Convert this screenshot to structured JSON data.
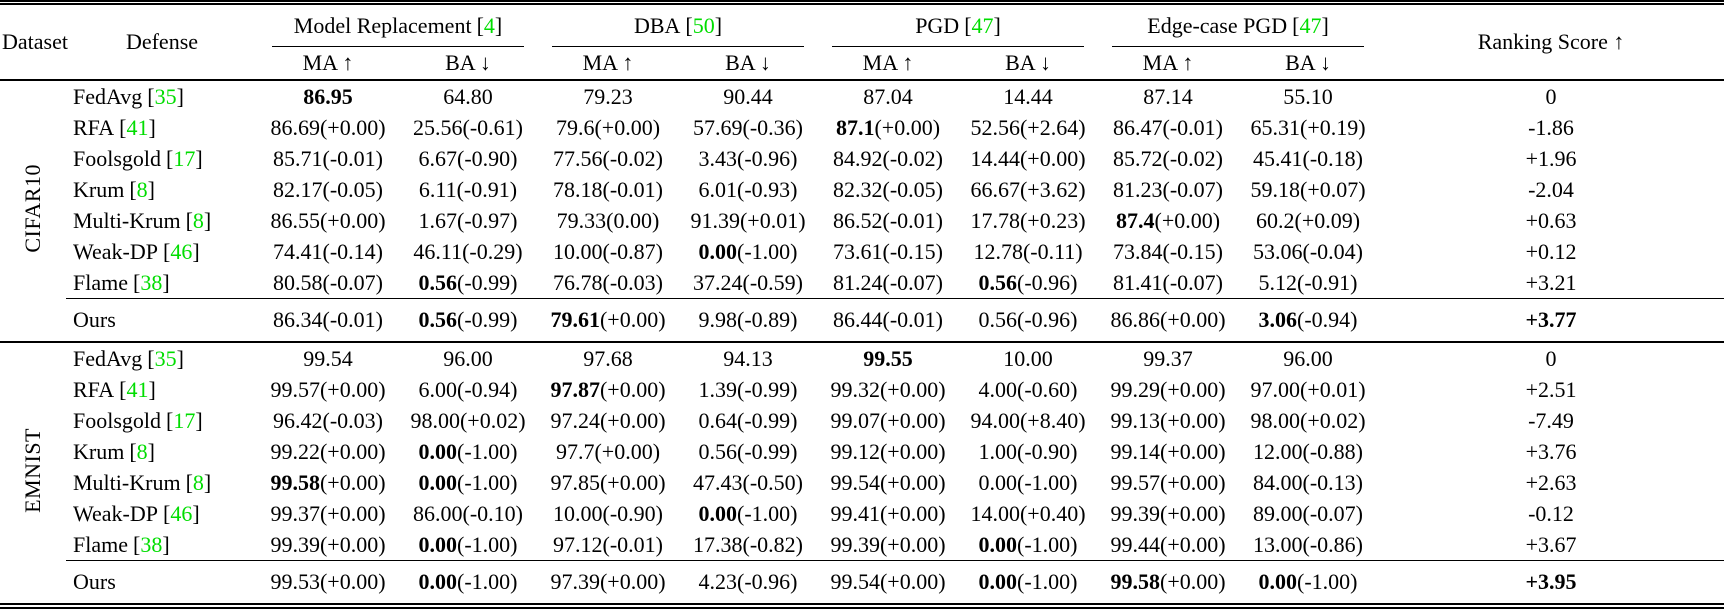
{
  "colors": {
    "citation": "#00dd00",
    "text": "#000000",
    "background": "#ffffff"
  },
  "punct": {
    "open_bracket": "[",
    "close_bracket": "]"
  },
  "header": {
    "dataset": "Dataset",
    "defense": "Defense",
    "groups": [
      {
        "label": "Model Replacement",
        "cite": "4"
      },
      {
        "label": "DBA",
        "cite": "50"
      },
      {
        "label": "PGD",
        "cite": "47"
      },
      {
        "label": "Edge-case PGD",
        "cite": "47"
      }
    ],
    "ma": "MA ↑",
    "ba": "BA ↓",
    "ranking": "Ranking Score ↑"
  },
  "sections": [
    {
      "dataset": "CIFAR10",
      "rows": [
        {
          "defense": "FedAvg",
          "cite": "35",
          "cells": [
            {
              "v": "86.95",
              "b": true
            },
            {
              "v": "64.80"
            },
            {
              "v": "79.23"
            },
            {
              "v": "90.44"
            },
            {
              "v": "87.04"
            },
            {
              "v": "14.44"
            },
            {
              "v": "87.14"
            },
            {
              "v": "55.10"
            }
          ],
          "score": "0",
          "score_bold": false
        },
        {
          "defense": "RFA",
          "cite": "41",
          "cells": [
            {
              "v": "86.69",
              "d": "(+0.00)"
            },
            {
              "v": "25.56",
              "d": "(-0.61)"
            },
            {
              "v": "79.6",
              "d": "(+0.00)"
            },
            {
              "v": "57.69",
              "d": "(-0.36)"
            },
            {
              "v": "87.1",
              "d": "(+0.00)",
              "b": true
            },
            {
              "v": "52.56",
              "d": "(+2.64)"
            },
            {
              "v": "86.47",
              "d": "(-0.01)"
            },
            {
              "v": "65.31",
              "d": "(+0.19)"
            }
          ],
          "score": "-1.86",
          "score_bold": false
        },
        {
          "defense": "Foolsgold",
          "cite": "17",
          "cells": [
            {
              "v": "85.71",
              "d": "(-0.01)"
            },
            {
              "v": "6.67",
              "d": "(-0.90)"
            },
            {
              "v": "77.56",
              "d": "(-0.02)"
            },
            {
              "v": "3.43",
              "d": "(-0.96)"
            },
            {
              "v": "84.92",
              "d": "(-0.02)"
            },
            {
              "v": "14.44",
              "d": "(+0.00)"
            },
            {
              "v": "85.72",
              "d": "(-0.02)"
            },
            {
              "v": "45.41",
              "d": "(-0.18)"
            }
          ],
          "score": "+1.96",
          "score_bold": false
        },
        {
          "defense": "Krum",
          "cite": "8",
          "cells": [
            {
              "v": "82.17",
              "d": "(-0.05)"
            },
            {
              "v": "6.11",
              "d": "(-0.91)"
            },
            {
              "v": "78.18",
              "d": "(-0.01)"
            },
            {
              "v": "6.01",
              "d": "(-0.93)"
            },
            {
              "v": "82.32",
              "d": "(-0.05)"
            },
            {
              "v": "66.67",
              "d": "(+3.62)"
            },
            {
              "v": "81.23",
              "d": "(-0.07)"
            },
            {
              "v": "59.18",
              "d": "(+0.07)"
            }
          ],
          "score": "-2.04",
          "score_bold": false
        },
        {
          "defense": "Multi-Krum",
          "cite": "8",
          "cells": [
            {
              "v": "86.55",
              "d": "(+0.00)"
            },
            {
              "v": "1.67",
              "d": "(-0.97)"
            },
            {
              "v": "79.33",
              "d": "(0.00)"
            },
            {
              "v": "91.39",
              "d": "(+0.01)"
            },
            {
              "v": "86.52",
              "d": "(-0.01)"
            },
            {
              "v": "17.78",
              "d": "(+0.23)"
            },
            {
              "v": "87.4",
              "d": "(+0.00)",
              "b": true
            },
            {
              "v": "60.2",
              "d": "(+0.09)"
            }
          ],
          "score": "+0.63",
          "score_bold": false
        },
        {
          "defense": "Weak-DP",
          "cite": "46",
          "cells": [
            {
              "v": "74.41",
              "d": "(-0.14)"
            },
            {
              "v": "46.11",
              "d": "(-0.29)"
            },
            {
              "v": "10.00",
              "d": "(-0.87)"
            },
            {
              "v": "0.00",
              "d": "(-1.00)",
              "b": true
            },
            {
              "v": "73.61",
              "d": "(-0.15)"
            },
            {
              "v": "12.78",
              "d": "(-0.11)"
            },
            {
              "v": "73.84",
              "d": "(-0.15)"
            },
            {
              "v": "53.06",
              "d": "(-0.04)"
            }
          ],
          "score": "+0.12",
          "score_bold": false
        },
        {
          "defense": "Flame",
          "cite": "38",
          "cells": [
            {
              "v": "80.58",
              "d": "(-0.07)"
            },
            {
              "v": "0.56",
              "d": "(-0.99)",
              "b": true
            },
            {
              "v": "76.78",
              "d": "(-0.03)"
            },
            {
              "v": "37.24",
              "d": "(-0.59)"
            },
            {
              "v": "81.24",
              "d": "(-0.07)"
            },
            {
              "v": "0.56",
              "d": "(-0.96)",
              "b": true
            },
            {
              "v": "81.41",
              "d": "(-0.07)"
            },
            {
              "v": "5.12",
              "d": "(-0.91)"
            }
          ],
          "score": "+3.21",
          "score_bold": false
        },
        {
          "defense": "Ours",
          "ours": true,
          "cells": [
            {
              "v": "86.34",
              "d": "(-0.01)"
            },
            {
              "v": "0.56",
              "d": "(-0.99)",
              "b": true
            },
            {
              "v": "79.61",
              "d": "(+0.00)",
              "b": true
            },
            {
              "v": "9.98",
              "d": "(-0.89)"
            },
            {
              "v": "86.44",
              "d": "(-0.01)"
            },
            {
              "v": "0.56",
              "d": "(-0.96)"
            },
            {
              "v": "86.86",
              "d": "(+0.00)"
            },
            {
              "v": "3.06",
              "d": "(-0.94)",
              "b": true
            }
          ],
          "score": "+3.77",
          "score_bold": true
        }
      ]
    },
    {
      "dataset": "EMNIST",
      "rows": [
        {
          "defense": "FedAvg",
          "cite": "35",
          "cells": [
            {
              "v": "99.54"
            },
            {
              "v": "96.00"
            },
            {
              "v": "97.68"
            },
            {
              "v": "94.13"
            },
            {
              "v": "99.55",
              "b": true
            },
            {
              "v": "10.00"
            },
            {
              "v": "99.37"
            },
            {
              "v": "96.00"
            }
          ],
          "score": "0",
          "score_bold": false
        },
        {
          "defense": "RFA",
          "cite": "41",
          "cells": [
            {
              "v": "99.57",
              "d": "(+0.00)"
            },
            {
              "v": "6.00",
              "d": "(-0.94)"
            },
            {
              "v": "97.87",
              "d": "(+0.00)",
              "b": true
            },
            {
              "v": "1.39",
              "d": "(-0.99)"
            },
            {
              "v": "99.32",
              "d": "(+0.00)"
            },
            {
              "v": "4.00",
              "d": "(-0.60)"
            },
            {
              "v": "99.29",
              "d": "(+0.00)"
            },
            {
              "v": "97.00",
              "d": "(+0.01)"
            }
          ],
          "score": "+2.51",
          "score_bold": false
        },
        {
          "defense": "Foolsgold",
          "cite": "17",
          "cells": [
            {
              "v": "96.42",
              "d": "(-0.03)"
            },
            {
              "v": "98.00",
              "d": "(+0.02)"
            },
            {
              "v": "97.24",
              "d": "(+0.00)"
            },
            {
              "v": "0.64",
              "d": "(-0.99)"
            },
            {
              "v": "99.07",
              "d": "(+0.00)"
            },
            {
              "v": "94.00",
              "d": "(+8.40)"
            },
            {
              "v": "99.13",
              "d": "(+0.00)"
            },
            {
              "v": "98.00",
              "d": "(+0.02)"
            }
          ],
          "score": "-7.49",
          "score_bold": false
        },
        {
          "defense": "Krum",
          "cite": "8",
          "cells": [
            {
              "v": "99.22",
              "d": "(+0.00)"
            },
            {
              "v": "0.00",
              "d": "(-1.00)",
              "b": true
            },
            {
              "v": "97.7",
              "d": "(+0.00)"
            },
            {
              "v": "0.56",
              "d": "(-0.99)"
            },
            {
              "v": "99.12",
              "d": "(+0.00)"
            },
            {
              "v": "1.00",
              "d": "(-0.90)"
            },
            {
              "v": "99.14",
              "d": "(+0.00)"
            },
            {
              "v": "12.00",
              "d": "(-0.88)"
            }
          ],
          "score": "+3.76",
          "score_bold": false
        },
        {
          "defense": "Multi-Krum",
          "cite": "8",
          "cells": [
            {
              "v": "99.58",
              "d": "(+0.00)",
              "b": true
            },
            {
              "v": "0.00",
              "d": "(-1.00)",
              "b": true
            },
            {
              "v": "97.85",
              "d": "(+0.00)"
            },
            {
              "v": "47.43",
              "d": "(-0.50)"
            },
            {
              "v": "99.54",
              "d": "(+0.00)"
            },
            {
              "v": "0.00",
              "d": "(-1.00)"
            },
            {
              "v": "99.57",
              "d": "(+0.00)"
            },
            {
              "v": "84.00",
              "d": "(-0.13)"
            }
          ],
          "score": "+2.63",
          "score_bold": false
        },
        {
          "defense": "Weak-DP",
          "cite": "46",
          "cells": [
            {
              "v": "99.37",
              "d": "(+0.00)"
            },
            {
              "v": "86.00",
              "d": "(-0.10)"
            },
            {
              "v": "10.00",
              "d": "(-0.90)"
            },
            {
              "v": "0.00",
              "d": "(-1.00)",
              "b": true
            },
            {
              "v": "99.41",
              "d": "(+0.00)"
            },
            {
              "v": "14.00",
              "d": "(+0.40)"
            },
            {
              "v": "99.39",
              "d": "(+0.00)"
            },
            {
              "v": "89.00",
              "d": "(-0.07)"
            }
          ],
          "score": "-0.12",
          "score_bold": false
        },
        {
          "defense": "Flame",
          "cite": "38",
          "cells": [
            {
              "v": "99.39",
              "d": "(+0.00)"
            },
            {
              "v": "0.00",
              "d": "(-1.00)",
              "b": true
            },
            {
              "v": "97.12",
              "d": "(-0.01)"
            },
            {
              "v": "17.38",
              "d": "(-0.82)"
            },
            {
              "v": "99.39",
              "d": "(+0.00)"
            },
            {
              "v": "0.00",
              "d": "(-1.00)",
              "b": true
            },
            {
              "v": "99.44",
              "d": "(+0.00)"
            },
            {
              "v": "13.00",
              "d": "(-0.86)"
            }
          ],
          "score": "+3.67",
          "score_bold": false
        },
        {
          "defense": "Ours",
          "ours": true,
          "cells": [
            {
              "v": "99.53",
              "d": "(+0.00)"
            },
            {
              "v": "0.00",
              "d": "(-1.00)",
              "b": true
            },
            {
              "v": "97.39",
              "d": "(+0.00)"
            },
            {
              "v": "4.23",
              "d": "(-0.96)"
            },
            {
              "v": "99.54",
              "d": "(+0.00)"
            },
            {
              "v": "0.00",
              "d": "(-1.00)",
              "b": true
            },
            {
              "v": "99.58",
              "d": "(+0.00)",
              "b": true
            },
            {
              "v": "0.00",
              "d": "(-1.00)",
              "b": true
            }
          ],
          "score": "+3.95",
          "score_bold": true
        }
      ]
    }
  ]
}
